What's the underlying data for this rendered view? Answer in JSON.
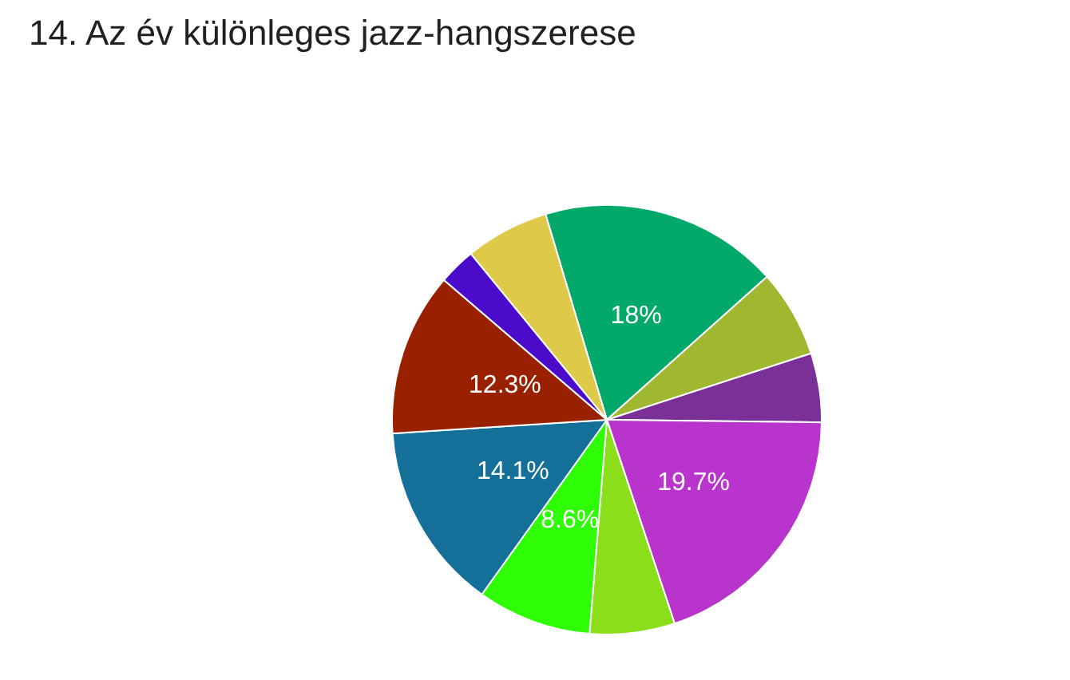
{
  "chart_data": {
    "type": "pie",
    "title": "14. Az év különleges jazz-hangszerese",
    "categories": [
      null,
      null,
      null,
      null,
      null,
      null,
      null,
      null,
      null,
      null
    ],
    "values": [
      18,
      6.6,
      5.2,
      19.7,
      6.4,
      8.6,
      14.1,
      12.3,
      2.8,
      6.3
    ],
    "colors": [
      "#02a96a",
      "#9fb830",
      "#7a3096",
      "#b934cc",
      "#8ade1a",
      "#2efd06",
      "#147098",
      "#992100",
      "#4c0acb",
      "#dfc948"
    ],
    "value_labels": [
      "18%",
      null,
      null,
      "19.7%",
      null,
      "8.6%",
      "14.1%",
      "12.3%",
      null,
      null
    ],
    "legend": false
  }
}
